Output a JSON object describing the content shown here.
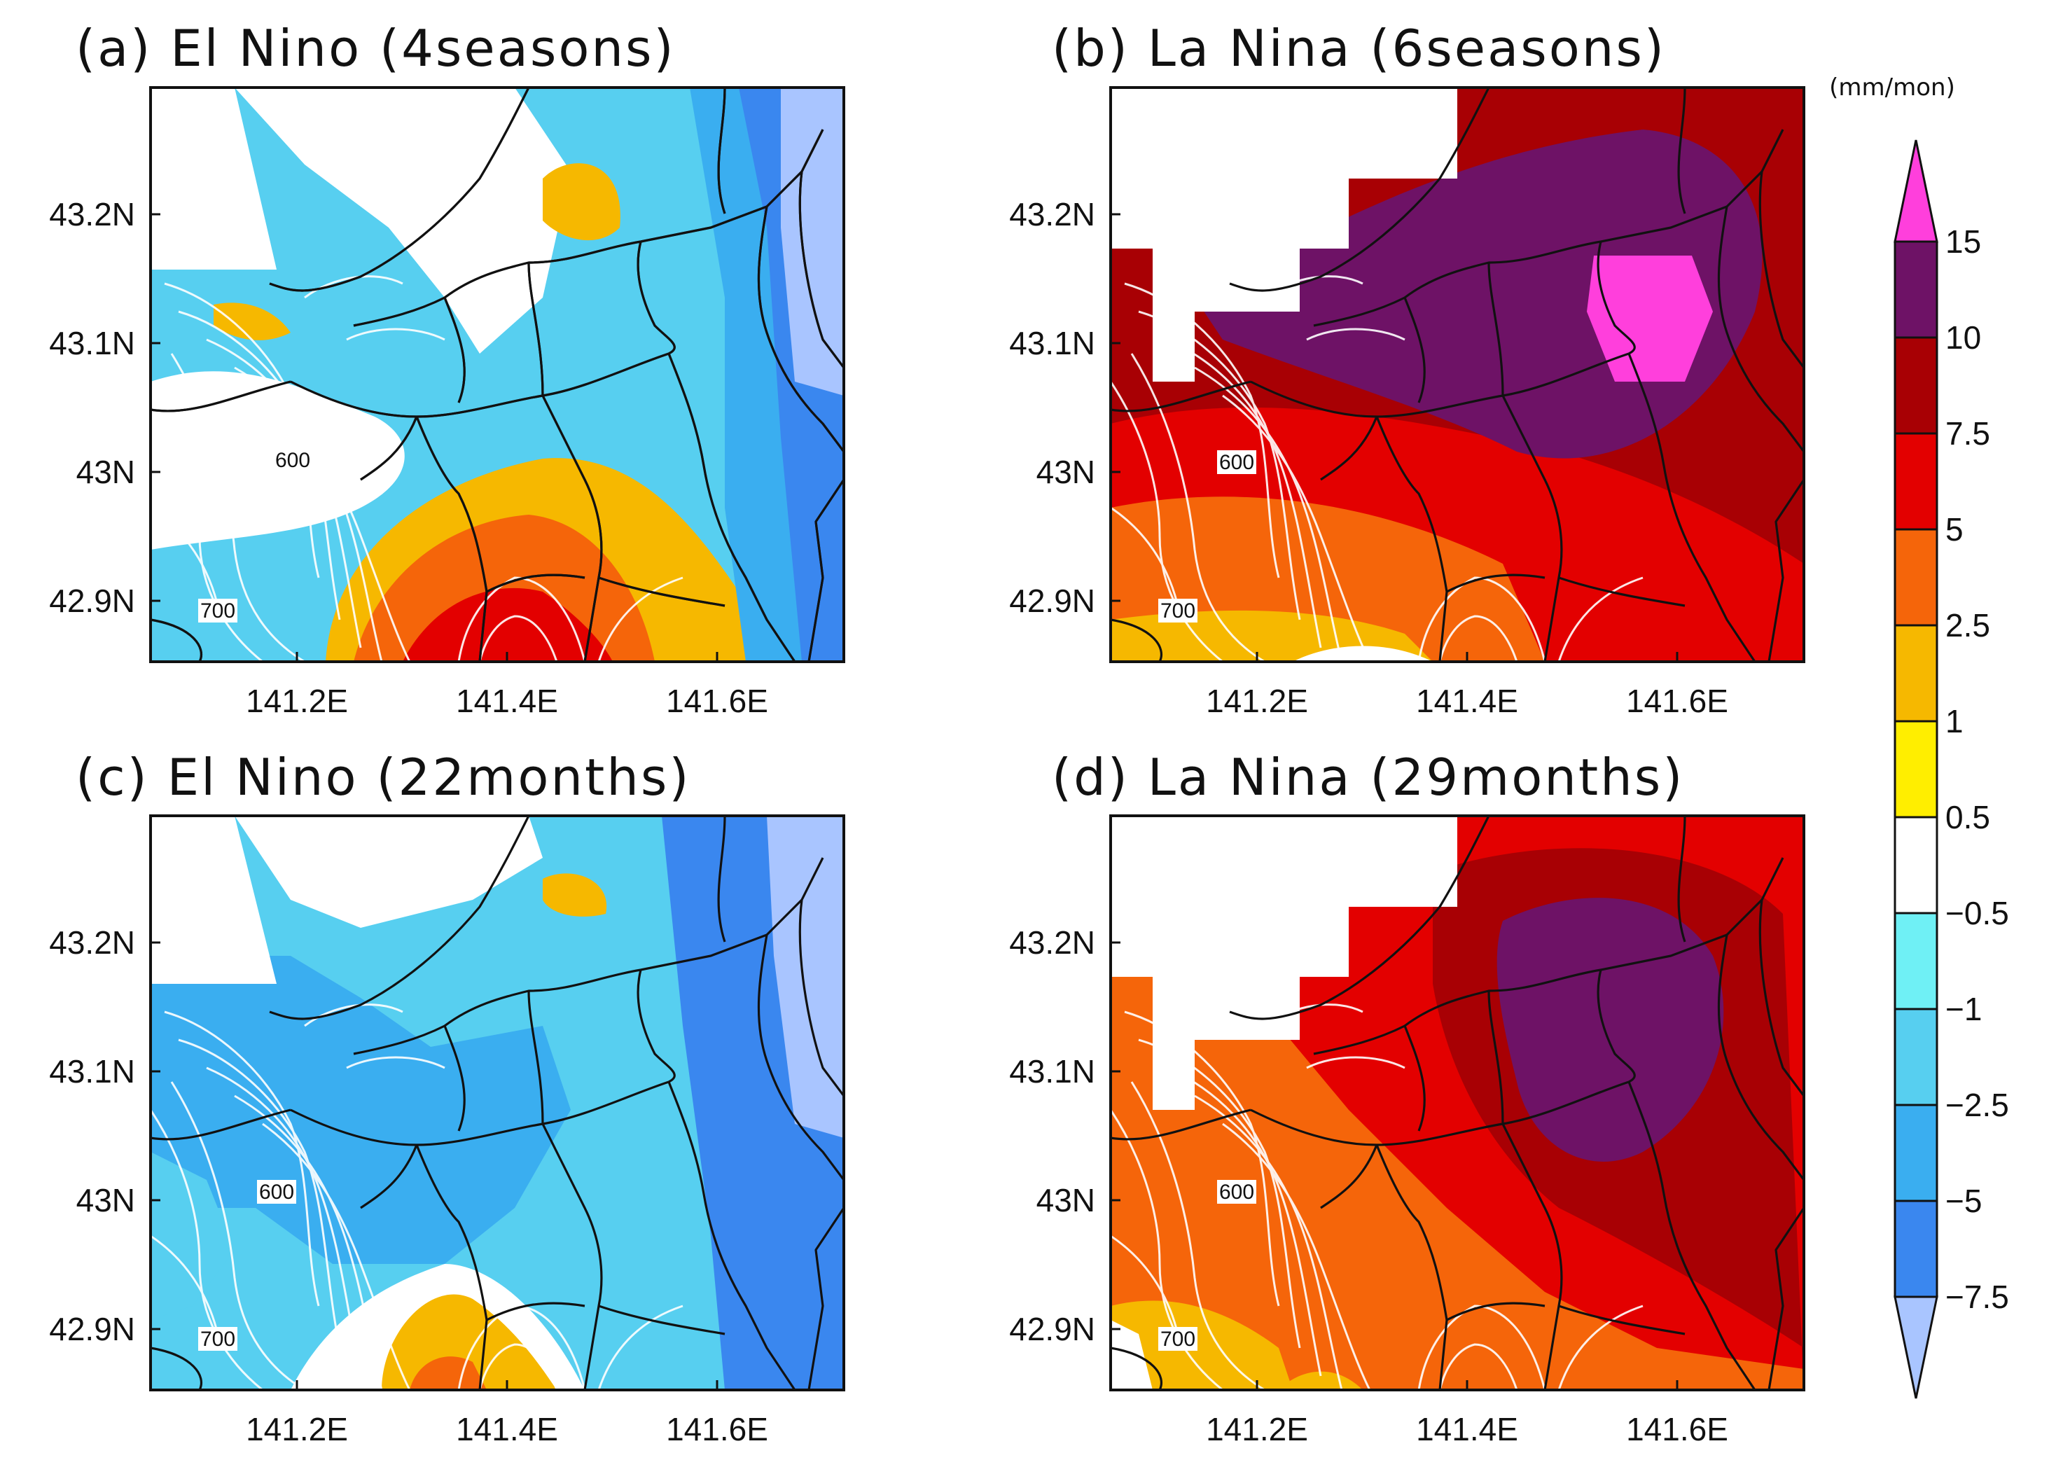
{
  "colorbar": {
    "unit": "(mm/mon)",
    "labels": [
      "15",
      "10",
      "7.5",
      "5",
      "2.5",
      "1",
      "0.5",
      "−0.5",
      "−1",
      "−2.5",
      "−5",
      "−7.5"
    ],
    "colors": [
      "#ff3fdc",
      "#6e1266",
      "#a80004",
      "#e30000",
      "#f5650a",
      "#f6b800",
      "#ffee00",
      "#ffffff",
      "#6ff0f5",
      "#57cff0",
      "#3aaef0",
      "#3a87ef",
      "#a9c5ff"
    ]
  },
  "panels": [
    {
      "title": "(a) El Nino (4seasons)",
      "contour_labels": [
        "600",
        "700"
      ],
      "lat_labels": [
        "43.2N",
        "43.1N",
        "43N",
        "42.9N"
      ],
      "lon_labels": [
        "141.2E",
        "141.4E",
        "141.6E"
      ]
    },
    {
      "title": "(b) La Nina (6seasons)",
      "contour_labels": [
        "600",
        "700"
      ],
      "lat_labels": [
        "43.2N",
        "43.1N",
        "43N",
        "42.9N"
      ],
      "lon_labels": [
        "141.2E",
        "141.4E",
        "141.6E"
      ]
    },
    {
      "title": "(c) El Nino (22months)",
      "contour_labels": [
        "600",
        "700"
      ],
      "lat_labels": [
        "43.2N",
        "43.1N",
        "43N",
        "42.9N"
      ],
      "lon_labels": [
        "141.2E",
        "141.4E",
        "141.6E"
      ]
    },
    {
      "title": "(d) La Nina (29months)",
      "contour_labels": [
        "600",
        "700"
      ],
      "lat_labels": [
        "43.2N",
        "43.1N",
        "43N",
        "42.9N"
      ],
      "lon_labels": [
        "141.2E",
        "141.4E",
        "141.6E"
      ]
    }
  ]
}
